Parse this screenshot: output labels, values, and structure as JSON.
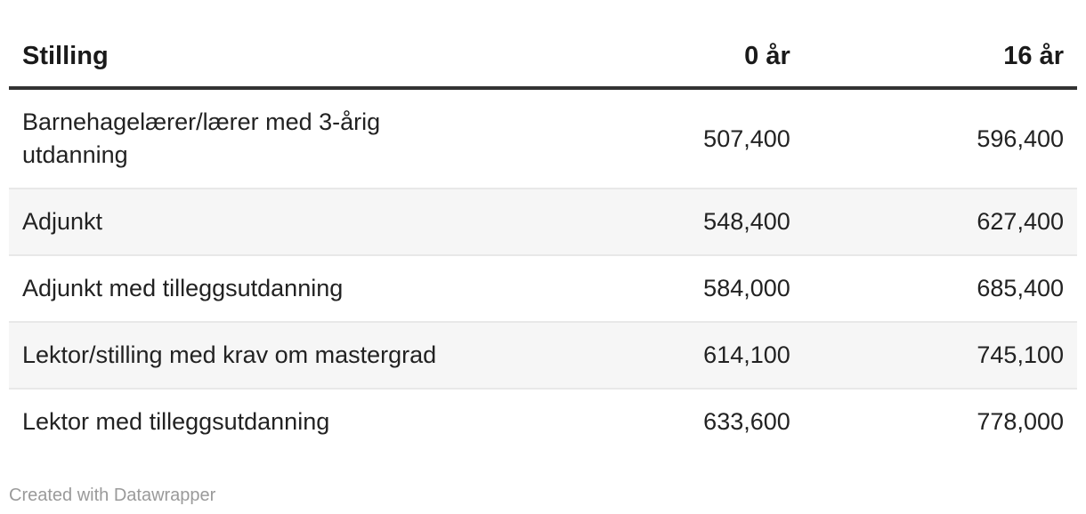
{
  "chart_data": {
    "type": "table",
    "columns": [
      "Stilling",
      "0 år",
      "16 år"
    ],
    "rows": [
      [
        "Barnehagelærer/lærer med 3-årig utdanning",
        "507,400",
        "596,400"
      ],
      [
        "Adjunkt",
        "548,400",
        "627,400"
      ],
      [
        "Adjunkt med tilleggsutdanning",
        "584,000",
        "685,400"
      ],
      [
        "Lektor/stilling med krav om mastergrad",
        "614,100",
        "745,100"
      ],
      [
        "Lektor med tilleggsutdanning",
        "633,600",
        "778,000"
      ]
    ],
    "values_numeric": {
      "0_ar": [
        507400,
        548400,
        584000,
        614100,
        633600
      ],
      "16_ar": [
        596400,
        627400,
        685400,
        745100,
        778000
      ]
    },
    "layout_hints": {
      "striped_rows": true,
      "header_rule": true,
      "number_alignment": "right"
    }
  },
  "footer": {
    "attribution": "Created with Datawrapper"
  },
  "colors": {
    "text": "#222222",
    "header_text": "#1a1a1a",
    "header_rule": "#333333",
    "row_stripe": "#f6f6f6",
    "row_border": "#e8e8e8",
    "attribution_text": "#9a9a9a",
    "background": "#ffffff"
  }
}
